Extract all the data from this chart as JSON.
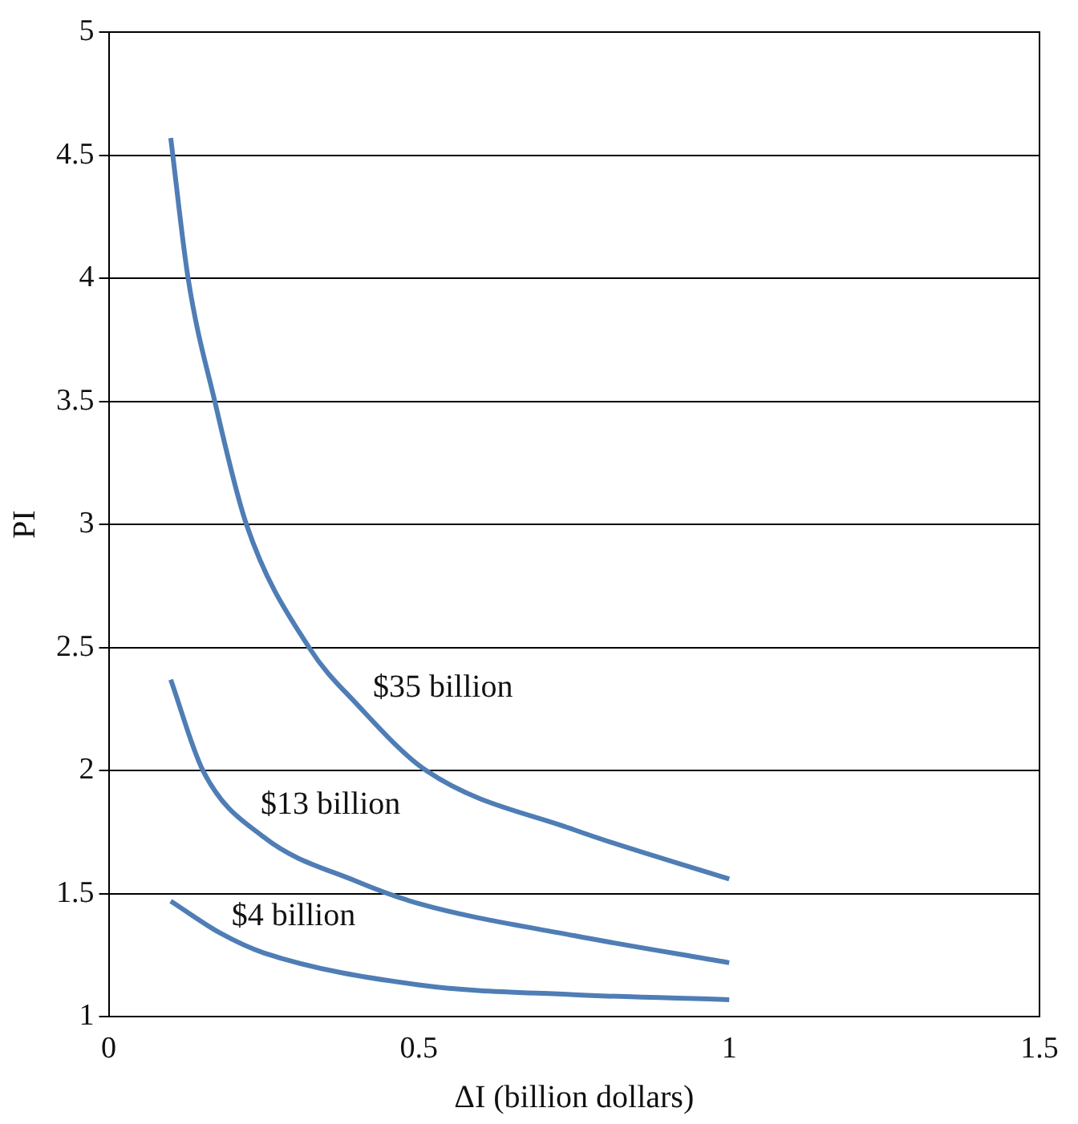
{
  "chart_data": {
    "type": "line",
    "xlabel": "ΔI (billion dollars)",
    "ylabel": "PI",
    "xlim": [
      0,
      1.5
    ],
    "xticks": [
      0,
      0.5,
      1,
      1.5
    ],
    "ylim": [
      1,
      5
    ],
    "yticks": [
      1,
      1.5,
      2,
      2.5,
      3,
      3.5,
      4,
      4.5,
      5
    ],
    "grid": "y",
    "legend": false,
    "marker": "none",
    "line_style": "solid",
    "series": [
      {
        "name": "$35 billion",
        "color": "#4f7db5",
        "x": [
          0.1,
          0.128,
          0.171,
          0.222,
          0.323,
          0.4,
          0.512,
          0.75,
          1
        ],
        "values": [
          4.57,
          4,
          3.5,
          3,
          2.5,
          2.27,
          2,
          1.76,
          1.56
        ]
      },
      {
        "name": "$13 billion",
        "color": "#4f7db5",
        "x": [
          0.1,
          0.152,
          0.25,
          0.4,
          0.5,
          0.75,
          1
        ],
        "values": [
          2.37,
          2,
          1.73,
          1.55,
          1.46,
          1.33,
          1.22
        ]
      },
      {
        "name": "$4 billion",
        "color": "#4f7db5",
        "x": [
          0.1,
          0.18,
          0.25,
          0.5,
          0.75,
          1
        ],
        "values": [
          1.47,
          1.34,
          1.26,
          1.13,
          1.09,
          1.07
        ]
      }
    ]
  }
}
